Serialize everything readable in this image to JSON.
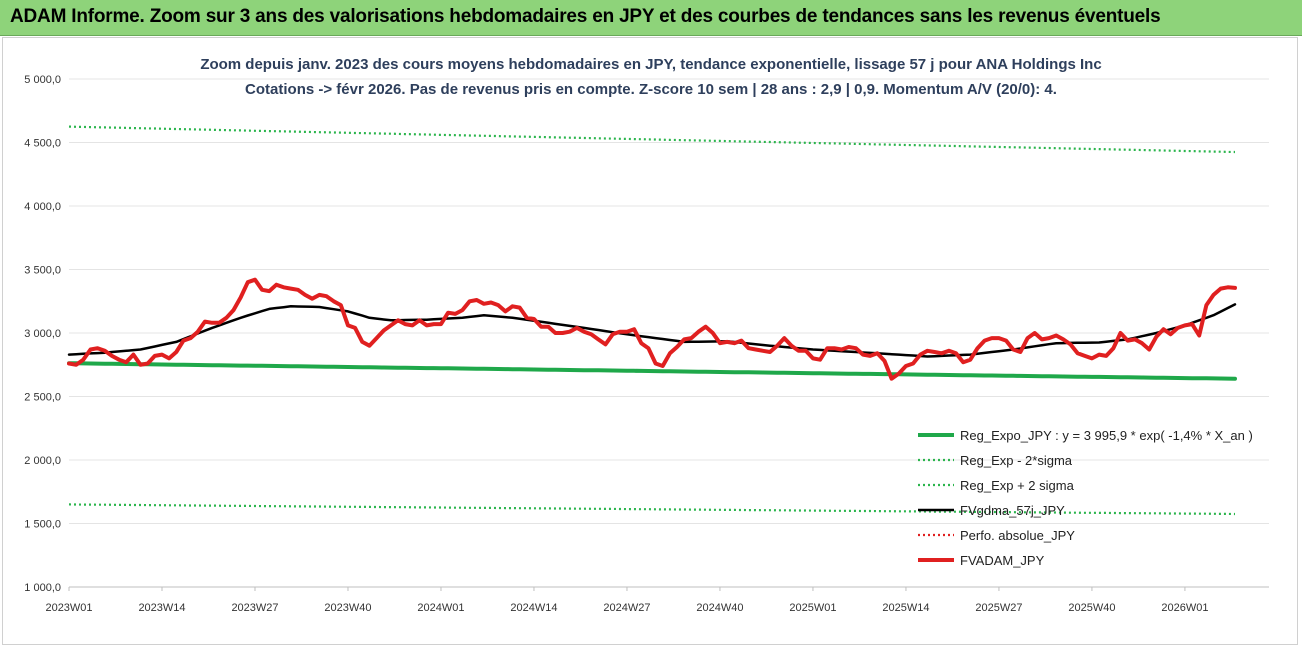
{
  "banner": {
    "title": "ADAM Informe. Zoom sur 3 ans des valorisations hebdomadaires en JPY et des courbes de tendances sans les revenus éventuels",
    "background_color": "#8ed37a"
  },
  "chart_data": {
    "type": "line",
    "title_line1": "Zoom depuis janv. 2023 des cours moyens hebdomadaires en JPY, tendance exponentielle, lissage 57 j pour ANA Holdings Inc",
    "title_line2": "Cotations -> févr 2026.  Pas de revenus pris en compte. Z-score 10 sem | 28 ans : 2,9 | 0,9. Momentum A/V (20/0): 4.",
    "ylim": [
      1000,
      5000
    ],
    "y_ticks": [
      1000,
      1500,
      2000,
      2500,
      3000,
      3500,
      4000,
      4500,
      5000
    ],
    "y_tick_labels": [
      "1 000,0",
      "1 500,0",
      "2 000,0",
      "2 500,0",
      "3 000,0",
      "3 500,0",
      "4 000,0",
      "4 500,0",
      "5 000,0"
    ],
    "x_range": [
      0,
      163
    ],
    "x_ticks": [
      0,
      13,
      26,
      39,
      52,
      65,
      78,
      91,
      104,
      117,
      130,
      143,
      156
    ],
    "x_tick_labels": [
      "2023W01",
      "2023W14",
      "2023W27",
      "2023W40",
      "2024W01",
      "2024W14",
      "2024W27",
      "2024W40",
      "2025W01",
      "2025W14",
      "2025W27",
      "2025W40",
      "2026W01"
    ],
    "grid": "horizontal",
    "legend_position": "bottom-right",
    "series": [
      {
        "name": "Reg_Expo_JPY : y = 3 995,9 * exp( -1,4% *  X_an )",
        "color": "#1fa84a",
        "style": "solid-thick",
        "start_value": 2762,
        "end_value": 2640
      },
      {
        "name": "Reg_Exp - 2*sigma",
        "color": "#2bb54d",
        "style": "dotted",
        "start_value": 1650,
        "end_value": 1575
      },
      {
        "name": "Reg_Exp + 2 sigma",
        "color": "#2bb54d",
        "style": "dotted",
        "start_value": 4625,
        "end_value": 4425
      },
      {
        "name": "FVgdma_57j_JPY",
        "color": "#000000",
        "style": "solid",
        "keypoints": [
          [
            0,
            2830
          ],
          [
            5,
            2845
          ],
          [
            10,
            2870
          ],
          [
            15,
            2930
          ],
          [
            20,
            3040
          ],
          [
            24,
            3120
          ],
          [
            28,
            3190
          ],
          [
            31,
            3210
          ],
          [
            35,
            3205
          ],
          [
            39,
            3170
          ],
          [
            42,
            3120
          ],
          [
            45,
            3100
          ],
          [
            50,
            3105
          ],
          [
            55,
            3120
          ],
          [
            58,
            3140
          ],
          [
            62,
            3120
          ],
          [
            67,
            3080
          ],
          [
            72,
            3040
          ],
          [
            78,
            2990
          ],
          [
            82,
            2960
          ],
          [
            86,
            2930
          ],
          [
            92,
            2935
          ],
          [
            98,
            2900
          ],
          [
            104,
            2870
          ],
          [
            110,
            2850
          ],
          [
            116,
            2830
          ],
          [
            120,
            2815
          ],
          [
            126,
            2830
          ],
          [
            132,
            2870
          ],
          [
            138,
            2920
          ],
          [
            144,
            2925
          ],
          [
            148,
            2950
          ],
          [
            152,
            3000
          ],
          [
            156,
            3060
          ],
          [
            160,
            3140
          ],
          [
            163,
            3225
          ]
        ]
      },
      {
        "name": "Perfo. absolue_JPY",
        "color": "#e02020",
        "style": "dotted"
      },
      {
        "name": "FVADAM_JPY",
        "color": "#e02020",
        "style": "solid-thick",
        "keypoints": [
          [
            0,
            2760
          ],
          [
            1,
            2750
          ],
          [
            2,
            2790
          ],
          [
            3,
            2870
          ],
          [
            4,
            2880
          ],
          [
            5,
            2860
          ],
          [
            6,
            2820
          ],
          [
            7,
            2790
          ],
          [
            8,
            2770
          ],
          [
            9,
            2830
          ],
          [
            10,
            2750
          ],
          [
            11,
            2760
          ],
          [
            12,
            2820
          ],
          [
            13,
            2830
          ],
          [
            14,
            2800
          ],
          [
            15,
            2850
          ],
          [
            16,
            2940
          ],
          [
            17,
            2960
          ],
          [
            18,
            3010
          ],
          [
            19,
            3090
          ],
          [
            20,
            3080
          ],
          [
            21,
            3080
          ],
          [
            22,
            3120
          ],
          [
            23,
            3180
          ],
          [
            24,
            3280
          ],
          [
            25,
            3400
          ],
          [
            26,
            3420
          ],
          [
            27,
            3340
          ],
          [
            28,
            3330
          ],
          [
            29,
            3380
          ],
          [
            30,
            3360
          ],
          [
            31,
            3350
          ],
          [
            32,
            3340
          ],
          [
            33,
            3300
          ],
          [
            34,
            3270
          ],
          [
            35,
            3300
          ],
          [
            36,
            3290
          ],
          [
            37,
            3250
          ],
          [
            38,
            3220
          ],
          [
            39,
            3060
          ],
          [
            40,
            3040
          ],
          [
            41,
            2930
          ],
          [
            42,
            2900
          ],
          [
            43,
            2960
          ],
          [
            44,
            3020
          ],
          [
            45,
            3060
          ],
          [
            46,
            3100
          ],
          [
            47,
            3070
          ],
          [
            48,
            3060
          ],
          [
            49,
            3100
          ],
          [
            50,
            3060
          ],
          [
            51,
            3070
          ],
          [
            52,
            3070
          ],
          [
            53,
            3160
          ],
          [
            54,
            3150
          ],
          [
            55,
            3180
          ],
          [
            56,
            3250
          ],
          [
            57,
            3260
          ],
          [
            58,
            3230
          ],
          [
            59,
            3240
          ],
          [
            60,
            3220
          ],
          [
            61,
            3170
          ],
          [
            62,
            3210
          ],
          [
            63,
            3200
          ],
          [
            64,
            3120
          ],
          [
            65,
            3110
          ],
          [
            66,
            3050
          ],
          [
            67,
            3050
          ],
          [
            68,
            3000
          ],
          [
            69,
            3000
          ],
          [
            70,
            3010
          ],
          [
            71,
            3040
          ],
          [
            72,
            3010
          ],
          [
            73,
            2990
          ],
          [
            74,
            2950
          ],
          [
            75,
            2910
          ],
          [
            76,
            2990
          ],
          [
            77,
            3010
          ],
          [
            78,
            3010
          ],
          [
            79,
            3030
          ],
          [
            80,
            2920
          ],
          [
            81,
            2880
          ],
          [
            82,
            2760
          ],
          [
            83,
            2740
          ],
          [
            84,
            2840
          ],
          [
            85,
            2890
          ],
          [
            86,
            2950
          ],
          [
            87,
            2960
          ],
          [
            88,
            3010
          ],
          [
            89,
            3050
          ],
          [
            90,
            3000
          ],
          [
            91,
            2920
          ],
          [
            92,
            2930
          ],
          [
            93,
            2920
          ],
          [
            94,
            2940
          ],
          [
            95,
            2880
          ],
          [
            96,
            2870
          ],
          [
            97,
            2860
          ],
          [
            98,
            2850
          ],
          [
            99,
            2900
          ],
          [
            100,
            2960
          ],
          [
            101,
            2900
          ],
          [
            102,
            2860
          ],
          [
            103,
            2860
          ],
          [
            104,
            2800
          ],
          [
            105,
            2790
          ],
          [
            106,
            2880
          ],
          [
            107,
            2880
          ],
          [
            108,
            2870
          ],
          [
            109,
            2890
          ],
          [
            110,
            2880
          ],
          [
            111,
            2830
          ],
          [
            112,
            2820
          ],
          [
            113,
            2840
          ],
          [
            114,
            2780
          ],
          [
            115,
            2640
          ],
          [
            116,
            2680
          ],
          [
            117,
            2740
          ],
          [
            118,
            2760
          ],
          [
            119,
            2830
          ],
          [
            120,
            2860
          ],
          [
            121,
            2850
          ],
          [
            122,
            2840
          ],
          [
            123,
            2860
          ],
          [
            124,
            2840
          ],
          [
            125,
            2770
          ],
          [
            126,
            2790
          ],
          [
            127,
            2880
          ],
          [
            128,
            2940
          ],
          [
            129,
            2960
          ],
          [
            130,
            2960
          ],
          [
            131,
            2940
          ],
          [
            132,
            2870
          ],
          [
            133,
            2850
          ],
          [
            134,
            2960
          ],
          [
            135,
            3000
          ],
          [
            136,
            2950
          ],
          [
            137,
            2960
          ],
          [
            138,
            2980
          ],
          [
            139,
            2950
          ],
          [
            140,
            2910
          ],
          [
            141,
            2840
          ],
          [
            142,
            2820
          ],
          [
            143,
            2800
          ],
          [
            144,
            2830
          ],
          [
            145,
            2820
          ],
          [
            146,
            2880
          ],
          [
            147,
            3000
          ],
          [
            148,
            2940
          ],
          [
            149,
            2950
          ],
          [
            150,
            2920
          ],
          [
            151,
            2870
          ],
          [
            152,
            2970
          ],
          [
            153,
            3030
          ],
          [
            154,
            2990
          ],
          [
            155,
            3040
          ],
          [
            156,
            3060
          ],
          [
            157,
            3070
          ],
          [
            158,
            2980
          ],
          [
            159,
            3220
          ],
          [
            160,
            3300
          ],
          [
            161,
            3350
          ],
          [
            162,
            3360
          ],
          [
            163,
            3355
          ]
        ]
      }
    ]
  }
}
